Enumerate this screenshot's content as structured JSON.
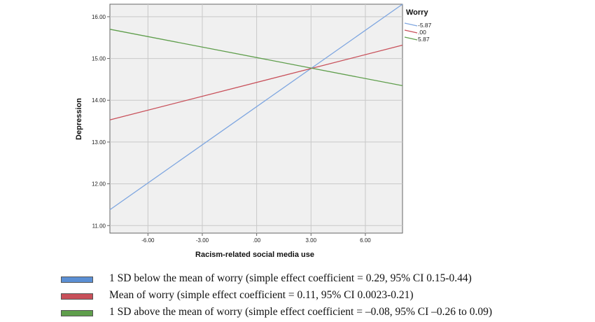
{
  "chart_data": {
    "type": "line",
    "xlabel": "Racism-related social media use",
    "ylabel": "Depression",
    "xlim": [
      -8.1,
      8.05
    ],
    "ylim": [
      10.82,
      16.3
    ],
    "x_ticks": [
      -6,
      -3,
      0,
      3,
      6
    ],
    "x_tick_labels": [
      "-6.00",
      "-3.00",
      ".00",
      "3.00",
      "6.00"
    ],
    "y_ticks": [
      11,
      12,
      13,
      14,
      15,
      16
    ],
    "y_tick_labels": [
      "11.00",
      "12.00",
      "13.00",
      "14.00",
      "15.00",
      "16.00"
    ],
    "grid": true,
    "legend_title": "Worry",
    "legend_position": "right",
    "series": [
      {
        "name": "-5.87",
        "color": "#7ea6e0",
        "x": [
          -8.1,
          8.05
        ],
        "y": [
          11.38,
          16.3
        ]
      },
      {
        "name": ".00",
        "color": "#c8505a",
        "x": [
          -8.1,
          8.05
        ],
        "y": [
          13.53,
          15.32
        ]
      },
      {
        "name": "5.87",
        "color": "#5f9e4c",
        "x": [
          -8.1,
          8.05
        ],
        "y": [
          15.7,
          14.35
        ]
      }
    ]
  },
  "captions": [
    {
      "text": "1 SD below the mean of worry (simple effect coefficient = 0.29, 95% CI 0.15-0.44)",
      "color": "#5b8fd4"
    },
    {
      "text": "Mean of worry (simple effect coefficient = 0.11, 95% CI 0.0023-0.21)",
      "color": "#c8505a"
    },
    {
      "text": "1 SD above the mean of worry (simple effect coefficient = –0.08, 95% CI –0.26 to 0.09)",
      "color": "#5f9e4c"
    }
  ]
}
